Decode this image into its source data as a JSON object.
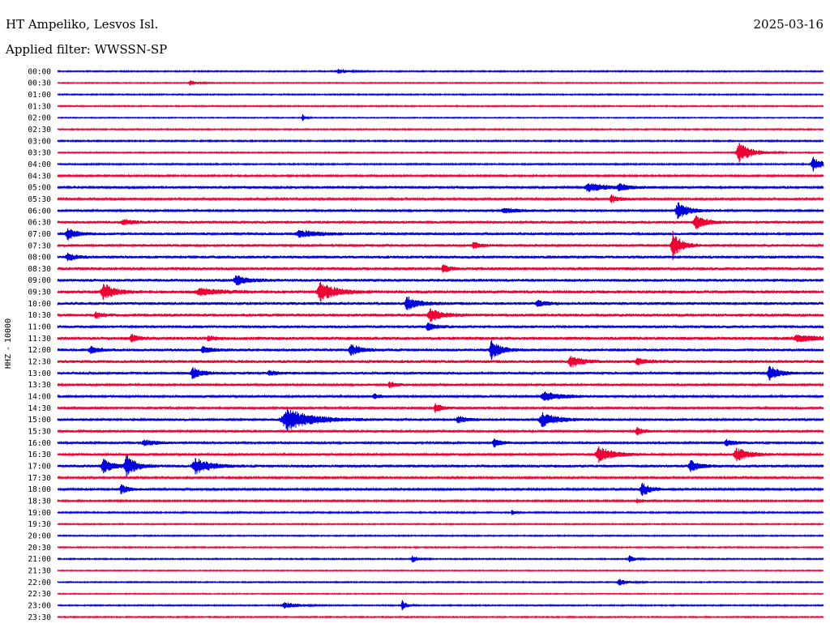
{
  "header": {
    "station": "HT Ampeliko, Lesvos Isl.",
    "filter": "Applied filter: WWSSN-SP",
    "date": "2025-03-16"
  },
  "axis": {
    "channel": "HHZ",
    "separator": "-",
    "scale": "10000"
  },
  "colors": {
    "even_line": "#0000dd",
    "odd_line": "#ee0033",
    "background": "#ffffff",
    "text": "#000000"
  },
  "chart_data": {
    "type": "line",
    "title": "",
    "grid": false,
    "time_labels": [
      "00:00",
      "00:30",
      "01:00",
      "01:30",
      "02:00",
      "02:30",
      "03:00",
      "03:30",
      "04:00",
      "04:30",
      "05:00",
      "05:30",
      "06:00",
      "06:30",
      "07:00",
      "07:30",
      "08:00",
      "08:30",
      "09:00",
      "09:30",
      "10:00",
      "10:30",
      "11:00",
      "11:30",
      "12:00",
      "12:30",
      "13:00",
      "13:30",
      "14:00",
      "14:30",
      "15:00",
      "15:30",
      "16:00",
      "16:30",
      "17:00",
      "17:30",
      "18:00",
      "18:30",
      "19:00",
      "19:30",
      "20:00",
      "20:30",
      "21:00",
      "21:30",
      "22:00",
      "22:30",
      "23:00",
      "23:30"
    ],
    "x_range_minutes": [
      0,
      30
    ],
    "noise": [
      0.6,
      0.5,
      0.6,
      0.6,
      0.5,
      0.6,
      0.7,
      0.6,
      0.7,
      0.8,
      1.1,
      1.0,
      1.1,
      1.2,
      1.2,
      1.2,
      1.3,
      1.4,
      1.4,
      1.5,
      1.4,
      1.4,
      1.3,
      1.5,
      1.3,
      1.4,
      1.2,
      1.1,
      1.1,
      1.1,
      1.2,
      1.1,
      1.1,
      1.1,
      1.3,
      0.9,
      0.9,
      0.8,
      0.7,
      0.6,
      0.6,
      0.6,
      0.6,
      0.5,
      0.6,
      0.5,
      0.6,
      0.6
    ],
    "events": [
      {
        "row": 0,
        "minute": 11.0,
        "amplitude": 3,
        "duration": 0.6
      },
      {
        "row": 1,
        "minute": 5.2,
        "amplitude": 3,
        "duration": 0.5
      },
      {
        "row": 4,
        "minute": 9.6,
        "amplitude": 4,
        "duration": 0.2
      },
      {
        "row": 7,
        "minute": 26.7,
        "amplitude": 12,
        "duration": 0.8
      },
      {
        "row": 8,
        "minute": 29.6,
        "amplitude": 9,
        "duration": 0.6
      },
      {
        "row": 10,
        "minute": 20.8,
        "amplitude": 5,
        "duration": 1.2
      },
      {
        "row": 10,
        "minute": 22.0,
        "amplitude": 4,
        "duration": 0.6
      },
      {
        "row": 11,
        "minute": 21.7,
        "amplitude": 5,
        "duration": 0.5
      },
      {
        "row": 12,
        "minute": 24.3,
        "amplitude": 10,
        "duration": 0.7
      },
      {
        "row": 12,
        "minute": 17.5,
        "amplitude": 3,
        "duration": 1.0
      },
      {
        "row": 13,
        "minute": 25.0,
        "amplitude": 8,
        "duration": 0.7
      },
      {
        "row": 13,
        "minute": 2.6,
        "amplitude": 3,
        "duration": 0.8
      },
      {
        "row": 14,
        "minute": 0.4,
        "amplitude": 7,
        "duration": 0.6
      },
      {
        "row": 14,
        "minute": 9.5,
        "amplitude": 4,
        "duration": 1.4
      },
      {
        "row": 15,
        "minute": 24.1,
        "amplitude": 18,
        "duration": 0.5
      },
      {
        "row": 15,
        "minute": 16.3,
        "amplitude": 4,
        "duration": 0.5
      },
      {
        "row": 16,
        "minute": 0.4,
        "amplitude": 5,
        "duration": 0.5
      },
      {
        "row": 17,
        "minute": 15.1,
        "amplitude": 5,
        "duration": 0.4
      },
      {
        "row": 18,
        "minute": 7.0,
        "amplitude": 6,
        "duration": 0.7
      },
      {
        "row": 19,
        "minute": 1.8,
        "amplitude": 10,
        "duration": 0.7
      },
      {
        "row": 19,
        "minute": 10.3,
        "amplitude": 12,
        "duration": 0.9
      },
      {
        "row": 19,
        "minute": 5.6,
        "amplitude": 4,
        "duration": 1.2
      },
      {
        "row": 20,
        "minute": 13.7,
        "amplitude": 8,
        "duration": 0.7
      },
      {
        "row": 20,
        "minute": 18.8,
        "amplitude": 4,
        "duration": 0.5
      },
      {
        "row": 21,
        "minute": 14.6,
        "amplitude": 8,
        "duration": 0.7
      },
      {
        "row": 21,
        "minute": 1.5,
        "amplitude": 4,
        "duration": 0.4
      },
      {
        "row": 22,
        "minute": 14.5,
        "amplitude": 5,
        "duration": 0.5
      },
      {
        "row": 23,
        "minute": 2.9,
        "amplitude": 5,
        "duration": 0.4
      },
      {
        "row": 23,
        "minute": 5.9,
        "amplitude": 3,
        "duration": 0.4
      },
      {
        "row": 23,
        "minute": 29.0,
        "amplitude": 4,
        "duration": 1.2
      },
      {
        "row": 24,
        "minute": 1.3,
        "amplitude": 4,
        "duration": 0.6
      },
      {
        "row": 24,
        "minute": 11.5,
        "amplitude": 7,
        "duration": 0.6
      },
      {
        "row": 24,
        "minute": 17.0,
        "amplitude": 12,
        "duration": 0.6
      },
      {
        "row": 24,
        "minute": 5.7,
        "amplitude": 4,
        "duration": 0.6
      },
      {
        "row": 25,
        "minute": 20.1,
        "amplitude": 7,
        "duration": 0.7
      },
      {
        "row": 25,
        "minute": 22.7,
        "amplitude": 4,
        "duration": 0.6
      },
      {
        "row": 26,
        "minute": 5.3,
        "amplitude": 7,
        "duration": 0.6
      },
      {
        "row": 26,
        "minute": 27.9,
        "amplitude": 9,
        "duration": 0.6
      },
      {
        "row": 26,
        "minute": 8.3,
        "amplitude": 3,
        "duration": 0.5
      },
      {
        "row": 27,
        "minute": 13.0,
        "amplitude": 4,
        "duration": 0.4
      },
      {
        "row": 28,
        "minute": 19.1,
        "amplitude": 5,
        "duration": 1.2
      },
      {
        "row": 28,
        "minute": 12.4,
        "amplitude": 3,
        "duration": 0.4
      },
      {
        "row": 29,
        "minute": 14.8,
        "amplitude": 6,
        "duration": 0.4
      },
      {
        "row": 30,
        "minute": 9.0,
        "amplitude": 13,
        "duration": 1.6
      },
      {
        "row": 30,
        "minute": 19.0,
        "amplitude": 9,
        "duration": 0.9
      },
      {
        "row": 30,
        "minute": 15.7,
        "amplitude": 4,
        "duration": 0.6
      },
      {
        "row": 31,
        "minute": 22.7,
        "amplitude": 5,
        "duration": 0.4
      },
      {
        "row": 32,
        "minute": 3.4,
        "amplitude": 4,
        "duration": 0.7
      },
      {
        "row": 32,
        "minute": 17.1,
        "amplitude": 5,
        "duration": 0.5
      },
      {
        "row": 32,
        "minute": 26.2,
        "amplitude": 4,
        "duration": 0.6
      },
      {
        "row": 33,
        "minute": 21.2,
        "amplitude": 10,
        "duration": 0.9
      },
      {
        "row": 33,
        "minute": 26.6,
        "amplitude": 8,
        "duration": 0.8
      },
      {
        "row": 34,
        "minute": 1.8,
        "amplitude": 9,
        "duration": 0.6
      },
      {
        "row": 34,
        "minute": 2.7,
        "amplitude": 13,
        "duration": 0.6
      },
      {
        "row": 34,
        "minute": 5.4,
        "amplitude": 10,
        "duration": 0.9
      },
      {
        "row": 34,
        "minute": 24.8,
        "amplitude": 7,
        "duration": 0.6
      },
      {
        "row": 36,
        "minute": 2.5,
        "amplitude": 6,
        "duration": 0.5
      },
      {
        "row": 36,
        "minute": 22.9,
        "amplitude": 8,
        "duration": 0.6
      },
      {
        "row": 37,
        "minute": 22.7,
        "amplitude": 3,
        "duration": 0.4
      },
      {
        "row": 38,
        "minute": 17.8,
        "amplitude": 3,
        "duration": 0.2
      },
      {
        "row": 42,
        "minute": 13.9,
        "amplitude": 4,
        "duration": 0.4
      },
      {
        "row": 42,
        "minute": 22.4,
        "amplitude": 4,
        "duration": 0.4
      },
      {
        "row": 44,
        "minute": 22.0,
        "amplitude": 4,
        "duration": 0.5
      },
      {
        "row": 46,
        "minute": 8.9,
        "amplitude": 4,
        "duration": 0.8
      },
      {
        "row": 46,
        "minute": 13.5,
        "amplitude": 6,
        "duration": 0.3
      }
    ]
  }
}
